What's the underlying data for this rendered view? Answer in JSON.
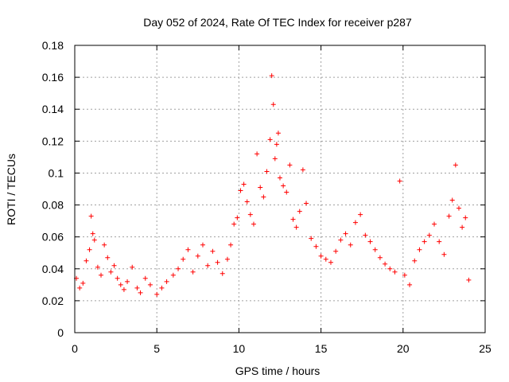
{
  "chart_data": {
    "type": "scatter",
    "title": "Day 052 of 2024, Rate Of TEC Index for receiver p287",
    "xlabel": "GPS time / hours",
    "ylabel": "ROTI / TECUs",
    "xlim": [
      0,
      25
    ],
    "ylim": [
      0,
      0.18
    ],
    "xticks": [
      0,
      5,
      10,
      15,
      20,
      25
    ],
    "xtick_labels": [
      "0",
      "5",
      "10",
      "15",
      "20",
      "25"
    ],
    "yticks": [
      0,
      0.02,
      0.04,
      0.06,
      0.08,
      0.1,
      0.12,
      0.14,
      0.16,
      0.18
    ],
    "ytick_labels": [
      "0",
      "0.02",
      "0.04",
      "0.06",
      "0.08",
      "0.1",
      "0.12",
      "0.14",
      "0.16",
      "0.18"
    ],
    "grid": true,
    "marker": "+",
    "colors": {
      "series": "#ff0000",
      "grid": "#a0a0a0",
      "axis": "#000000"
    },
    "series": [
      {
        "name": "ROTI",
        "x": [
          0.1,
          0.3,
          0.5,
          0.7,
          0.9,
          1.0,
          1.1,
          1.2,
          1.4,
          1.6,
          1.8,
          2.0,
          2.2,
          2.4,
          2.6,
          2.8,
          3.0,
          3.2,
          3.5,
          3.8,
          4.0,
          4.3,
          4.6,
          5.0,
          5.3,
          5.6,
          6.0,
          6.3,
          6.6,
          6.9,
          7.2,
          7.5,
          7.8,
          8.1,
          8.4,
          8.7,
          9.0,
          9.3,
          9.5,
          9.7,
          9.9,
          10.1,
          10.3,
          10.5,
          10.7,
          10.9,
          11.1,
          11.3,
          11.5,
          11.7,
          11.9,
          12.0,
          12.1,
          12.2,
          12.3,
          12.4,
          12.5,
          12.7,
          12.9,
          13.1,
          13.3,
          13.5,
          13.7,
          13.9,
          14.1,
          14.4,
          14.7,
          15.0,
          15.3,
          15.6,
          15.9,
          16.2,
          16.5,
          16.8,
          17.1,
          17.4,
          17.7,
          18.0,
          18.3,
          18.6,
          18.9,
          19.2,
          19.5,
          19.8,
          20.1,
          20.4,
          20.7,
          21.0,
          21.3,
          21.6,
          21.9,
          22.2,
          22.5,
          22.8,
          23.0,
          23.2,
          23.4,
          23.6,
          23.8,
          24.0
        ],
        "y": [
          0.034,
          0.028,
          0.031,
          0.045,
          0.052,
          0.073,
          0.062,
          0.058,
          0.041,
          0.036,
          0.055,
          0.047,
          0.038,
          0.042,
          0.034,
          0.03,
          0.027,
          0.032,
          0.041,
          0.028,
          0.025,
          0.034,
          0.03,
          0.024,
          0.028,
          0.032,
          0.036,
          0.04,
          0.046,
          0.052,
          0.038,
          0.048,
          0.055,
          0.042,
          0.051,
          0.044,
          0.037,
          0.046,
          0.055,
          0.068,
          0.072,
          0.089,
          0.093,
          0.082,
          0.074,
          0.068,
          0.112,
          0.091,
          0.085,
          0.101,
          0.121,
          0.161,
          0.143,
          0.109,
          0.118,
          0.125,
          0.097,
          0.092,
          0.088,
          0.105,
          0.071,
          0.066,
          0.076,
          0.102,
          0.081,
          0.059,
          0.054,
          0.048,
          0.046,
          0.044,
          0.051,
          0.058,
          0.062,
          0.055,
          0.069,
          0.074,
          0.061,
          0.057,
          0.052,
          0.047,
          0.043,
          0.04,
          0.038,
          0.095,
          0.036,
          0.03,
          0.045,
          0.052,
          0.057,
          0.061,
          0.068,
          0.057,
          0.049,
          0.073,
          0.083,
          0.105,
          0.078,
          0.066,
          0.072,
          0.033
        ]
      }
    ]
  }
}
